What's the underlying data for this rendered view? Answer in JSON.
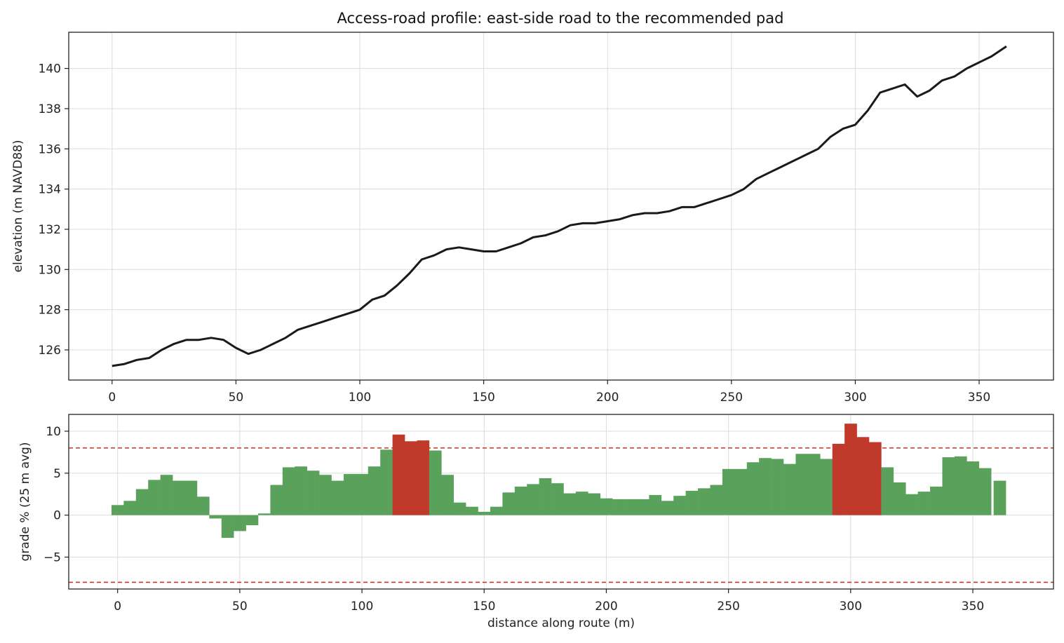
{
  "chart_data": [
    {
      "type": "line",
      "title": "Access-road profile: east-side road to the recommended pad",
      "xlabel": "",
      "ylabel": "elevation (m NAVD88)",
      "xlim": [
        -17.5,
        380
      ],
      "ylim": [
        124.5,
        141.8
      ],
      "xticks": [
        0,
        50,
        100,
        150,
        200,
        250,
        300,
        350
      ],
      "yticks": [
        126,
        128,
        130,
        132,
        134,
        136,
        138,
        140
      ],
      "grid": true,
      "colors": {
        "line": "#1a1a1a"
      },
      "series": [
        {
          "x": [
            0,
            5,
            10,
            15,
            20,
            25,
            30,
            35,
            40,
            45,
            50,
            55,
            60,
            65,
            70,
            75,
            80,
            85,
            90,
            95,
            100,
            105,
            110,
            115,
            120,
            125,
            130,
            135,
            140,
            145,
            150,
            155,
            160,
            165,
            170,
            175,
            180,
            185,
            190,
            195,
            200,
            205,
            210,
            215,
            220,
            225,
            230,
            235,
            240,
            245,
            250,
            255,
            260,
            265,
            270,
            275,
            280,
            285,
            290,
            295,
            300,
            305,
            310,
            315,
            320,
            325,
            330,
            335,
            340,
            345,
            350,
            355,
            361
          ],
          "y": [
            125.2,
            125.3,
            125.5,
            125.6,
            126.0,
            126.3,
            126.5,
            126.5,
            126.6,
            126.5,
            126.1,
            125.8,
            126.0,
            126.3,
            126.6,
            127.0,
            127.2,
            127.4,
            127.6,
            127.8,
            128.0,
            128.5,
            128.7,
            129.2,
            129.8,
            130.5,
            130.7,
            131.0,
            131.1,
            131.0,
            130.9,
            130.9,
            131.1,
            131.3,
            131.6,
            131.7,
            131.9,
            132.2,
            132.3,
            132.3,
            132.4,
            132.5,
            132.7,
            132.8,
            132.8,
            132.9,
            133.1,
            133.1,
            133.3,
            133.5,
            133.7,
            134.0,
            134.5,
            134.8,
            135.1,
            135.4,
            135.7,
            136.0,
            136.6,
            137.0,
            137.2,
            137.9,
            138.8,
            139.0,
            139.2,
            138.6,
            138.9,
            139.4,
            139.6,
            140.0,
            140.3,
            140.6,
            141.1
          ]
        }
      ]
    },
    {
      "type": "bar",
      "title": "",
      "xlabel": "distance along route (m)",
      "ylabel": "grade % (25 m avg)",
      "xlim": [
        -20,
        383
      ],
      "ylim": [
        -8.8,
        12.0
      ],
      "xticks": [
        0,
        50,
        100,
        150,
        200,
        250,
        300,
        350
      ],
      "yticks": [
        -5,
        0,
        5,
        10
      ],
      "ytick_labels": [
        "−5",
        "0",
        "5",
        "10"
      ],
      "grid": true,
      "bar_width": 5,
      "threshold": [
        8,
        -8
      ],
      "colors": {
        "ok": "#5aa25c",
        "steep": "#c0392b",
        "threshold": "#c0392b"
      },
      "x": [
        0,
        5,
        10,
        15,
        20,
        25,
        30,
        35,
        40,
        45,
        50,
        55,
        60,
        65,
        70,
        75,
        80,
        85,
        90,
        95,
        100,
        105,
        110,
        115,
        120,
        125,
        130,
        135,
        140,
        145,
        150,
        155,
        160,
        165,
        170,
        175,
        180,
        185,
        190,
        195,
        200,
        205,
        210,
        215,
        220,
        225,
        230,
        235,
        240,
        245,
        250,
        255,
        260,
        265,
        270,
        275,
        280,
        285,
        290,
        295,
        300,
        305,
        310,
        315,
        320,
        325,
        330,
        335,
        340,
        345,
        350,
        355,
        361
      ],
      "values": [
        1.2,
        1.7,
        3.1,
        4.2,
        4.8,
        4.1,
        4.1,
        2.2,
        -0.4,
        -2.7,
        -1.9,
        -1.2,
        0.2,
        3.6,
        5.7,
        5.8,
        5.3,
        4.8,
        4.1,
        4.9,
        4.9,
        5.8,
        7.8,
        9.6,
        8.8,
        8.9,
        7.7,
        4.8,
        1.5,
        1.0,
        0.4,
        1.0,
        2.7,
        3.4,
        3.7,
        4.4,
        3.8,
        2.6,
        2.8,
        2.6,
        2.0,
        1.9,
        1.9,
        1.9,
        2.4,
        1.7,
        2.3,
        2.9,
        3.2,
        3.6,
        5.5,
        5.5,
        6.3,
        6.8,
        6.7,
        6.1,
        7.3,
        7.3,
        6.7,
        8.5,
        10.9,
        9.3,
        8.7,
        5.7,
        3.9,
        2.5,
        2.8,
        3.4,
        6.9,
        7.0,
        6.4,
        5.6,
        4.1
      ]
    }
  ]
}
